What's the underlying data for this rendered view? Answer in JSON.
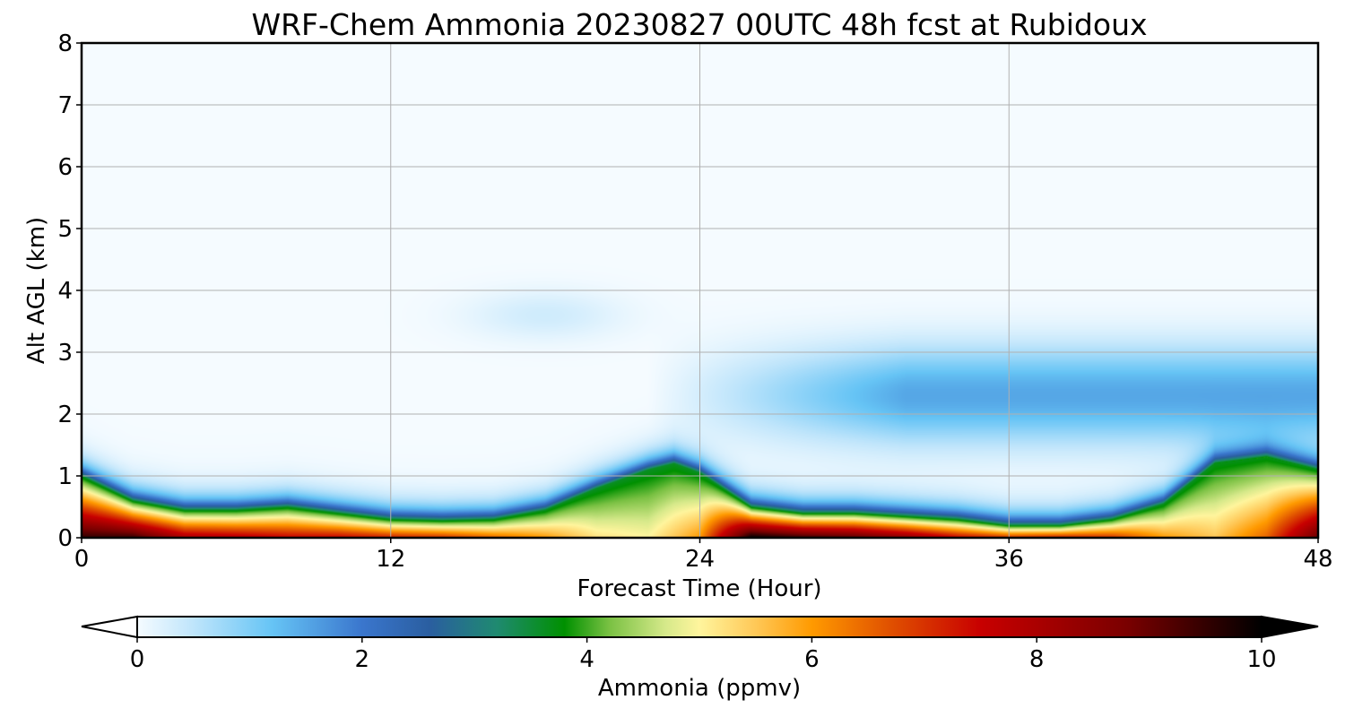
{
  "chart_data": {
    "type": "heatmap",
    "title": "WRF-Chem Ammonia  20230827 00UTC 48h fcst at Rubidoux",
    "xlabel": "Forecast Time (Hour)",
    "ylabel": "Alt AGL (km)",
    "xlim": [
      0,
      48
    ],
    "ylim": [
      0,
      8
    ],
    "xticks": [
      0,
      12,
      24,
      36,
      48
    ],
    "yticks": [
      0,
      1,
      2,
      3,
      4,
      5,
      6,
      7,
      8
    ],
    "grid": true,
    "colorbar": {
      "label": "Ammonia  (ppmv)",
      "range": [
        0,
        10
      ],
      "ticks": [
        0,
        2,
        4,
        6,
        8,
        10
      ],
      "extend": "both",
      "colors": [
        "#f5fbff",
        "#bfe5fb",
        "#66c4f5",
        "#3a76cd",
        "#2a5ea0",
        "#1f8a70",
        "#009000",
        "#7ac143",
        "#d6e98a",
        "#fff59d",
        "#ffc857",
        "#ff9a00",
        "#e05000",
        "#c80000",
        "#7a0000",
        "#000000"
      ],
      "color_stops": [
        0,
        0.5,
        1.2,
        2.0,
        2.6,
        3.2,
        3.8,
        4.2,
        4.7,
        5.0,
        5.5,
        6.0,
        6.7,
        7.5,
        8.8,
        10
      ]
    },
    "time_hours": [
      0,
      2,
      4,
      6,
      8,
      10,
      12,
      14,
      16,
      18,
      20,
      22,
      23,
      24,
      26,
      28,
      30,
      32,
      34,
      36,
      38,
      40,
      42,
      44,
      46,
      48
    ],
    "boundary_layer_top_km": [
      1.0,
      0.6,
      0.45,
      0.45,
      0.5,
      0.4,
      0.3,
      0.28,
      0.3,
      0.45,
      0.8,
      1.1,
      1.2,
      1.05,
      0.5,
      0.4,
      0.4,
      0.35,
      0.3,
      0.2,
      0.2,
      0.3,
      0.55,
      1.2,
      1.3,
      1.1
    ],
    "surface_ammonia_ppmv": [
      9.5,
      9.5,
      8.0,
      7.8,
      7.5,
      7.5,
      7.2,
      7.0,
      6.5,
      6.0,
      5.2,
      5.0,
      5.5,
      6.0,
      10.0,
      9.5,
      9.2,
      8.5,
      7.5,
      7.0,
      7.2,
      7.0,
      6.0,
      5.5,
      6.5,
      9.0
    ],
    "elevated_layer": {
      "x_start": 22,
      "x_end": 48,
      "z_min_km": 1.3,
      "z_max_km": 4.5,
      "peak_km": 2.3,
      "peak_ppmv": 1.5
    }
  }
}
